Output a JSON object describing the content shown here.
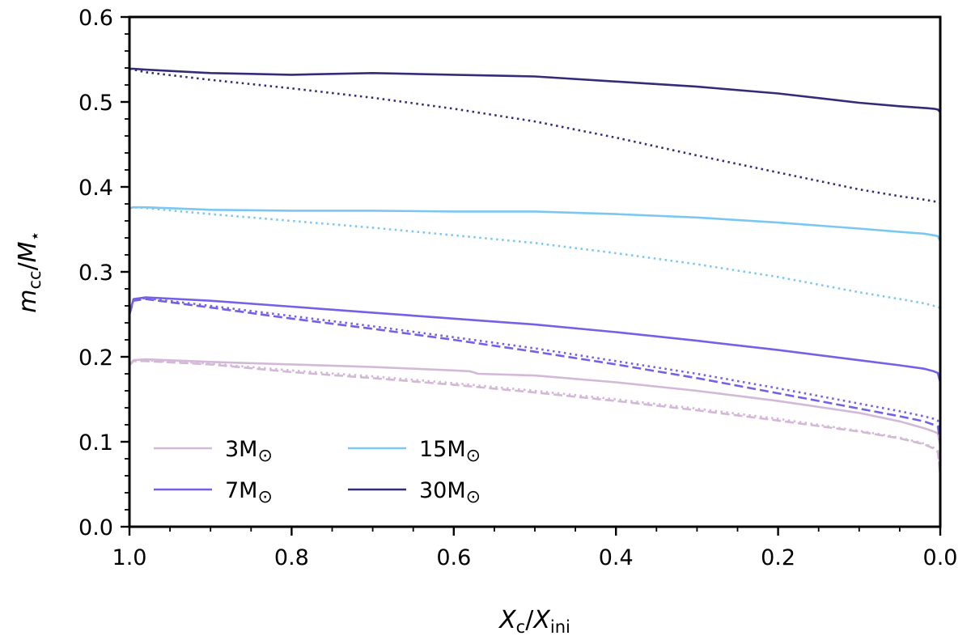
{
  "chart_data": {
    "type": "line",
    "xlabel": {
      "main": "X",
      "sub": "c",
      "sep": "/",
      "main2": "X",
      "sub2": "ini"
    },
    "ylabel": {
      "main": "m",
      "sub": "cc",
      "sep": "/",
      "main2": "M",
      "sub2": "⋆"
    },
    "xlim": [
      1.0,
      0.0
    ],
    "ylim": [
      0.0,
      0.6
    ],
    "x_axis_reversed": true,
    "x_ticks": [
      "1.0",
      "0.8",
      "0.6",
      "0.4",
      "0.2",
      "0.0"
    ],
    "y_ticks": [
      "0.0",
      "0.1",
      "0.2",
      "0.3",
      "0.4",
      "0.5",
      "0.6"
    ],
    "grid": false,
    "legend_position": "lower-left",
    "legend": [
      {
        "label": "3M",
        "symbol": "⊙",
        "color": "#d4b8d8"
      },
      {
        "label": "15M",
        "symbol": "⊙",
        "color": "#7ac8f2"
      },
      {
        "label": "7M",
        "symbol": "⊙",
        "color": "#7560e6"
      },
      {
        "label": "30M",
        "symbol": "⊙",
        "color": "#342c78"
      }
    ],
    "series": [
      {
        "mass": "3M",
        "style": "solid",
        "color": "#d4b8d8",
        "x": [
          1.0,
          0.995,
          0.98,
          0.9,
          0.8,
          0.7,
          0.6,
          0.58,
          0.57,
          0.5,
          0.4,
          0.3,
          0.2,
          0.1,
          0.05,
          0.02,
          0.008,
          0.003,
          0.0
        ],
        "y": [
          0.19,
          0.196,
          0.197,
          0.194,
          0.191,
          0.188,
          0.184,
          0.183,
          0.18,
          0.178,
          0.17,
          0.16,
          0.148,
          0.134,
          0.124,
          0.116,
          0.112,
          0.11,
          0.095
        ]
      },
      {
        "mass": "3M",
        "style": "dashed",
        "color": "#d4b8d8",
        "x": [
          1.0,
          0.995,
          0.98,
          0.9,
          0.8,
          0.7,
          0.6,
          0.5,
          0.4,
          0.3,
          0.2,
          0.1,
          0.05,
          0.02,
          0.008,
          0.003,
          0.0
        ],
        "y": [
          0.19,
          0.195,
          0.195,
          0.191,
          0.182,
          0.175,
          0.167,
          0.158,
          0.148,
          0.137,
          0.125,
          0.112,
          0.104,
          0.097,
          0.092,
          0.088,
          0.06
        ]
      },
      {
        "mass": "3M",
        "style": "dotted",
        "color": "#d4b8d8",
        "x": [
          1.0,
          0.995,
          0.98,
          0.9,
          0.8,
          0.7,
          0.6,
          0.5,
          0.4,
          0.3,
          0.2,
          0.1,
          0.05,
          0.02,
          0.008,
          0.003,
          0.0
        ],
        "y": [
          0.192,
          0.196,
          0.196,
          0.192,
          0.184,
          0.177,
          0.169,
          0.16,
          0.15,
          0.139,
          0.127,
          0.113,
          0.105,
          0.098,
          0.093,
          0.089,
          0.062
        ]
      },
      {
        "mass": "7M",
        "style": "solid",
        "color": "#7560e6",
        "x": [
          1.0,
          0.995,
          0.98,
          0.9,
          0.8,
          0.7,
          0.6,
          0.5,
          0.4,
          0.3,
          0.2,
          0.1,
          0.05,
          0.02,
          0.008,
          0.003,
          0.0
        ],
        "y": [
          0.25,
          0.268,
          0.27,
          0.266,
          0.259,
          0.252,
          0.245,
          0.238,
          0.229,
          0.219,
          0.208,
          0.196,
          0.19,
          0.186,
          0.183,
          0.181,
          0.17
        ]
      },
      {
        "mass": "7M",
        "style": "dashed",
        "color": "#7560e6",
        "x": [
          1.0,
          0.995,
          0.98,
          0.9,
          0.8,
          0.7,
          0.6,
          0.5,
          0.4,
          0.3,
          0.2,
          0.1,
          0.05,
          0.02,
          0.008,
          0.003,
          0.0
        ],
        "y": [
          0.25,
          0.266,
          0.268,
          0.258,
          0.245,
          0.233,
          0.22,
          0.206,
          0.191,
          0.175,
          0.157,
          0.139,
          0.13,
          0.124,
          0.12,
          0.118,
          0.1
        ]
      },
      {
        "mass": "7M",
        "style": "dotted",
        "color": "#7560e6",
        "x": [
          1.0,
          0.995,
          0.98,
          0.9,
          0.8,
          0.7,
          0.6,
          0.5,
          0.4,
          0.3,
          0.2,
          0.1,
          0.05,
          0.02,
          0.008,
          0.003,
          0.0
        ],
        "y": [
          0.252,
          0.267,
          0.269,
          0.26,
          0.248,
          0.236,
          0.223,
          0.21,
          0.195,
          0.18,
          0.163,
          0.145,
          0.136,
          0.13,
          0.127,
          0.125,
          0.11
        ]
      },
      {
        "mass": "15M",
        "style": "solid",
        "color": "#7ac8f2",
        "x": [
          1.0,
          0.995,
          0.98,
          0.9,
          0.8,
          0.7,
          0.6,
          0.5,
          0.4,
          0.3,
          0.2,
          0.1,
          0.05,
          0.02,
          0.008,
          0.003,
          0.0
        ],
        "y": [
          0.375,
          0.376,
          0.376,
          0.373,
          0.372,
          0.372,
          0.371,
          0.371,
          0.368,
          0.364,
          0.358,
          0.351,
          0.347,
          0.345,
          0.343,
          0.342,
          0.336
        ]
      },
      {
        "mass": "15M",
        "style": "dotted",
        "color": "#7ac8f2",
        "x": [
          1.0,
          0.995,
          0.98,
          0.9,
          0.8,
          0.7,
          0.6,
          0.5,
          0.4,
          0.3,
          0.2,
          0.1,
          0.05,
          0.02,
          0.008,
          0.003,
          0.0
        ],
        "y": [
          0.375,
          0.376,
          0.375,
          0.368,
          0.36,
          0.352,
          0.343,
          0.334,
          0.322,
          0.309,
          0.294,
          0.276,
          0.268,
          0.263,
          0.26,
          0.259,
          0.257
        ]
      },
      {
        "mass": "30M",
        "style": "solid",
        "color": "#342c78",
        "x": [
          1.0,
          0.995,
          0.98,
          0.9,
          0.85,
          0.8,
          0.7,
          0.6,
          0.5,
          0.4,
          0.3,
          0.2,
          0.1,
          0.05,
          0.02,
          0.008,
          0.003,
          0.0
        ],
        "y": [
          0.539,
          0.539,
          0.538,
          0.534,
          0.533,
          0.532,
          0.534,
          0.532,
          0.53,
          0.524,
          0.518,
          0.51,
          0.499,
          0.495,
          0.493,
          0.492,
          0.491,
          0.488
        ]
      },
      {
        "mass": "30M",
        "style": "dotted",
        "color": "#342c78",
        "x": [
          1.0,
          0.995,
          0.98,
          0.9,
          0.8,
          0.7,
          0.6,
          0.5,
          0.4,
          0.3,
          0.2,
          0.1,
          0.05,
          0.02,
          0.008,
          0.003,
          0.0
        ],
        "y": [
          0.539,
          0.538,
          0.535,
          0.526,
          0.516,
          0.505,
          0.492,
          0.477,
          0.458,
          0.437,
          0.417,
          0.397,
          0.389,
          0.385,
          0.383,
          0.382,
          0.381
        ]
      }
    ]
  }
}
